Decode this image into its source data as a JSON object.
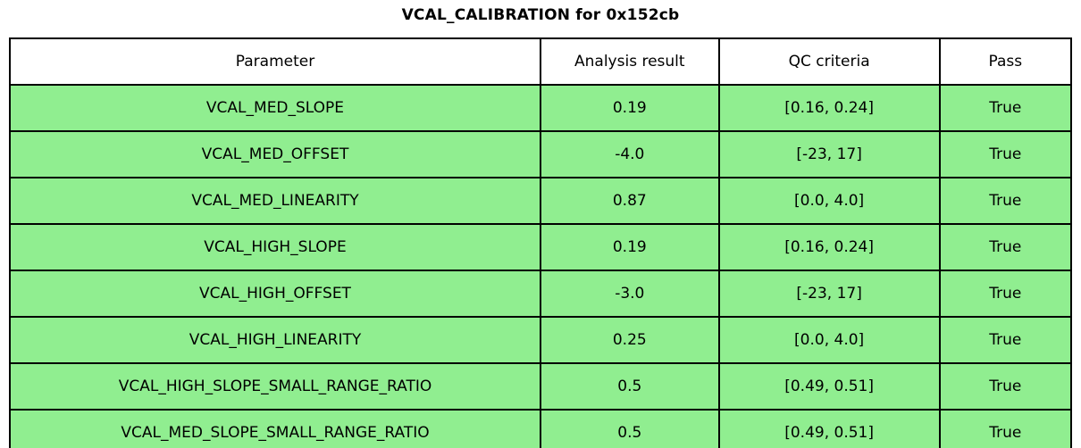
{
  "title": "VCAL_CALIBRATION for 0x152cb",
  "table": {
    "headers": [
      "Parameter",
      "Analysis result",
      "QC criteria",
      "Pass"
    ],
    "rows": [
      {
        "parameter": "VCAL_MED_SLOPE",
        "result": "0.19",
        "criteria": "[0.16, 0.24]",
        "pass": "True"
      },
      {
        "parameter": "VCAL_MED_OFFSET",
        "result": "-4.0",
        "criteria": "[-23, 17]",
        "pass": "True"
      },
      {
        "parameter": "VCAL_MED_LINEARITY",
        "result": "0.87",
        "criteria": "[0.0, 4.0]",
        "pass": "True"
      },
      {
        "parameter": "VCAL_HIGH_SLOPE",
        "result": "0.19",
        "criteria": "[0.16, 0.24]",
        "pass": "True"
      },
      {
        "parameter": "VCAL_HIGH_OFFSET",
        "result": "-3.0",
        "criteria": "[-23, 17]",
        "pass": "True"
      },
      {
        "parameter": "VCAL_HIGH_LINEARITY",
        "result": "0.25",
        "criteria": "[0.0, 4.0]",
        "pass": "True"
      },
      {
        "parameter": "VCAL_HIGH_SLOPE_SMALL_RANGE_RATIO",
        "result": "0.5",
        "criteria": "[0.49, 0.51]",
        "pass": "True"
      },
      {
        "parameter": "VCAL_MED_SLOPE_SMALL_RANGE_RATIO",
        "result": "0.5",
        "criteria": "[0.49, 0.51]",
        "pass": "True"
      }
    ]
  },
  "chart_data": {
    "type": "table",
    "title": "VCAL_CALIBRATION for 0x152cb",
    "columns": [
      "Parameter",
      "Analysis result",
      "QC criteria",
      "Pass"
    ],
    "rows": [
      [
        "VCAL_MED_SLOPE",
        0.19,
        "[0.16, 0.24]",
        true
      ],
      [
        "VCAL_MED_OFFSET",
        -4.0,
        "[-23, 17]",
        true
      ],
      [
        "VCAL_MED_LINEARITY",
        0.87,
        "[0.0, 4.0]",
        true
      ],
      [
        "VCAL_HIGH_SLOPE",
        0.19,
        "[0.16, 0.24]",
        true
      ],
      [
        "VCAL_HIGH_OFFSET",
        -3.0,
        "[-23, 17]",
        true
      ],
      [
        "VCAL_HIGH_LINEARITY",
        0.25,
        "[0.0, 4.0]",
        true
      ],
      [
        "VCAL_HIGH_SLOPE_SMALL_RANGE_RATIO",
        0.5,
        "[0.49, 0.51]",
        true
      ],
      [
        "VCAL_MED_SLOPE_SMALL_RANGE_RATIO",
        0.5,
        "[0.49, 0.51]",
        true
      ]
    ]
  },
  "colors": {
    "row_background": "#90ee90",
    "header_background": "#ffffff",
    "border": "#000000",
    "text": "#000000"
  }
}
